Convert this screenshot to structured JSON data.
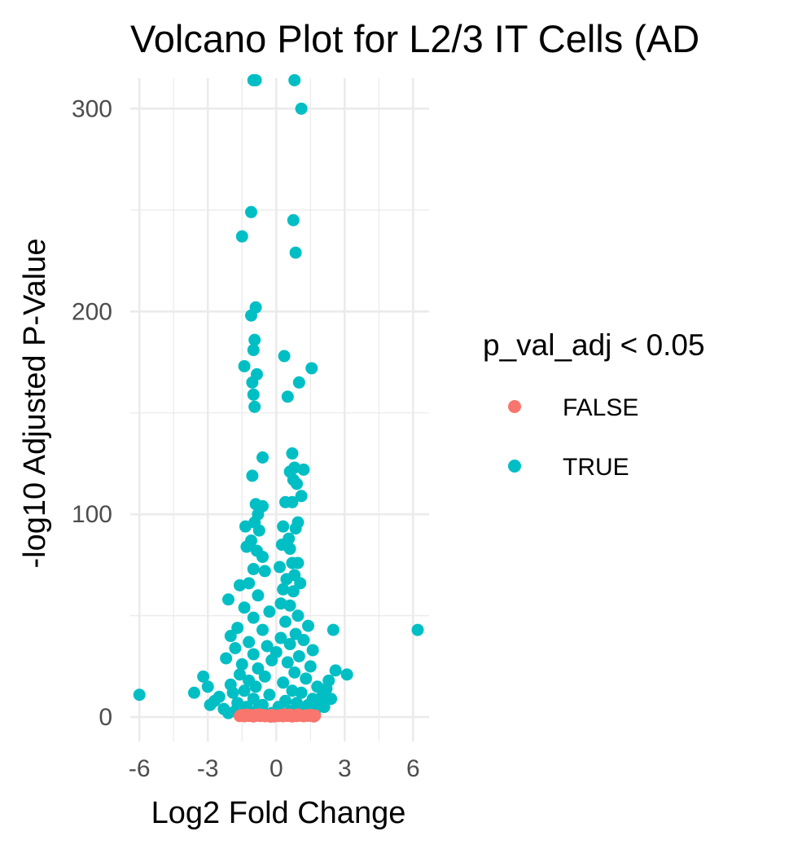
{
  "chart_data": {
    "type": "scatter",
    "title": "Volcano Plot for L2/3 IT Cells (AD",
    "xlabel": "Log2 Fold Change",
    "ylabel": "-log10 Adjusted P-Value",
    "xlim": [
      -6.4,
      6.7
    ],
    "ylim": [
      -12,
      315
    ],
    "x_ticks": [
      -6,
      -3,
      0,
      3,
      6
    ],
    "x_tick_labels": [
      "-6",
      "-3",
      "0",
      "3",
      "6"
    ],
    "y_ticks": [
      0,
      100,
      200,
      300
    ],
    "y_tick_labels": [
      "0",
      "100",
      "200",
      "300"
    ],
    "grid": true,
    "legend": {
      "title": "p_val_adj < 0.05",
      "position": "right",
      "entries": [
        {
          "label": "FALSE",
          "color": "#F8766D"
        },
        {
          "label": "TRUE",
          "color": "#00BFC4"
        }
      ]
    },
    "series": [
      {
        "name": "FALSE",
        "color": "#F8766D",
        "points": [
          [
            -1.6,
            0.5
          ],
          [
            -1.5,
            1
          ],
          [
            -1.4,
            0.4
          ],
          [
            -1.3,
            1.2
          ],
          [
            -1.2,
            0.6
          ],
          [
            -1.1,
            0.9
          ],
          [
            -1.0,
            0.3
          ],
          [
            -0.9,
            1.1
          ],
          [
            -0.8,
            0.7
          ],
          [
            -0.7,
            0.5
          ],
          [
            -0.6,
            1.0
          ],
          [
            -0.5,
            0.4
          ],
          [
            -0.4,
            0.8
          ],
          [
            -0.3,
            0.6
          ],
          [
            -0.2,
            1.1
          ],
          [
            -0.1,
            0.3
          ],
          [
            0.0,
            0.7
          ],
          [
            0.1,
            0.5
          ],
          [
            0.2,
            1.0
          ],
          [
            0.3,
            0.4
          ],
          [
            0.4,
            0.9
          ],
          [
            0.5,
            0.6
          ],
          [
            0.6,
            1.2
          ],
          [
            0.7,
            0.3
          ],
          [
            0.8,
            0.8
          ],
          [
            0.9,
            0.5
          ],
          [
            1.0,
            1.0
          ],
          [
            1.1,
            0.7
          ],
          [
            1.2,
            0.4
          ],
          [
            1.3,
            0.9
          ],
          [
            1.4,
            0.6
          ],
          [
            1.5,
            1.1
          ],
          [
            1.6,
            0.5
          ],
          [
            1.7,
            0.8
          ],
          [
            -1.55,
            0.9
          ],
          [
            1.65,
            0.3
          ],
          [
            -0.25,
            0.2
          ],
          [
            0.35,
            1.3
          ],
          [
            -0.75,
            1.3
          ],
          [
            0.95,
            1.3
          ]
        ]
      },
      {
        "name": "TRUE",
        "color": "#00BFC4",
        "points": [
          [
            -1.0,
            314
          ],
          [
            -0.9,
            314
          ],
          [
            0.8,
            314
          ],
          [
            1.1,
            300
          ],
          [
            -1.1,
            249
          ],
          [
            0.75,
            245
          ],
          [
            -1.5,
            237
          ],
          [
            0.85,
            229
          ],
          [
            -0.9,
            202
          ],
          [
            -1.1,
            198
          ],
          [
            -0.95,
            186
          ],
          [
            -1.0,
            181
          ],
          [
            0.35,
            178
          ],
          [
            -0.85,
            169
          ],
          [
            -1.4,
            173
          ],
          [
            1.55,
            172
          ],
          [
            -1.05,
            165
          ],
          [
            1.0,
            165
          ],
          [
            -1.0,
            159
          ],
          [
            -0.95,
            153
          ],
          [
            0.5,
            158
          ],
          [
            -0.6,
            128
          ],
          [
            0.7,
            130
          ],
          [
            0.8,
            123
          ],
          [
            1.2,
            122
          ],
          [
            0.6,
            121
          ],
          [
            0.75,
            117
          ],
          [
            -1.05,
            119
          ],
          [
            0.9,
            115
          ],
          [
            1.1,
            109
          ],
          [
            0.4,
            106
          ],
          [
            0.7,
            106
          ],
          [
            -0.9,
            105
          ],
          [
            -0.6,
            104
          ],
          [
            -0.8,
            100
          ],
          [
            -0.95,
            96
          ],
          [
            0.95,
            96
          ],
          [
            0.3,
            94
          ],
          [
            -1.35,
            94
          ],
          [
            0.85,
            93
          ],
          [
            -0.75,
            92
          ],
          [
            0.55,
            88
          ],
          [
            -1.1,
            87
          ],
          [
            0.25,
            85
          ],
          [
            0.6,
            83
          ],
          [
            -1.3,
            84
          ],
          [
            -0.85,
            82
          ],
          [
            -0.6,
            79
          ],
          [
            0.7,
            76
          ],
          [
            0.95,
            76
          ],
          [
            0.15,
            74
          ],
          [
            -1.0,
            73
          ],
          [
            -0.5,
            72
          ],
          [
            0.8,
            70
          ],
          [
            0.45,
            68
          ],
          [
            -1.6,
            65
          ],
          [
            -1.2,
            66
          ],
          [
            1.05,
            66
          ],
          [
            0.3,
            63
          ],
          [
            0.75,
            62
          ],
          [
            -2.1,
            58
          ],
          [
            -0.8,
            60
          ],
          [
            0.2,
            56
          ],
          [
            0.6,
            55
          ],
          [
            -1.4,
            54
          ],
          [
            -0.3,
            52
          ],
          [
            0.95,
            50
          ],
          [
            -1.0,
            49
          ],
          [
            0.4,
            47
          ],
          [
            1.4,
            45
          ],
          [
            2.5,
            43
          ],
          [
            6.2,
            43
          ],
          [
            -1.7,
            44
          ],
          [
            -0.6,
            43
          ],
          [
            0.85,
            41
          ],
          [
            -2.0,
            40
          ],
          [
            0.2,
            39
          ],
          [
            1.2,
            38
          ],
          [
            -1.2,
            37
          ],
          [
            0.6,
            36
          ],
          [
            -0.4,
            35
          ],
          [
            -1.8,
            34
          ],
          [
            1.6,
            33
          ],
          [
            0.0,
            32
          ],
          [
            -1.0,
            31
          ],
          [
            1.0,
            30
          ],
          [
            -2.2,
            29
          ],
          [
            -0.2,
            28
          ],
          [
            0.5,
            27
          ],
          [
            -1.5,
            26
          ],
          [
            1.5,
            25
          ],
          [
            -0.8,
            24
          ],
          [
            2.6,
            23
          ],
          [
            0.8,
            22
          ],
          [
            -1.6,
            21
          ],
          [
            3.1,
            21
          ],
          [
            -3.2,
            20
          ],
          [
            -0.5,
            20
          ],
          [
            1.3,
            19
          ],
          [
            2.3,
            18
          ],
          [
            -1.2,
            18
          ],
          [
            0.3,
            17
          ],
          [
            -2.0,
            16
          ],
          [
            -3.0,
            15
          ],
          [
            1.8,
            15
          ],
          [
            -0.9,
            15
          ],
          [
            2.2,
            14
          ],
          [
            -1.4,
            13
          ],
          [
            0.7,
            13
          ],
          [
            -3.6,
            12
          ],
          [
            -1.9,
            12
          ],
          [
            1.1,
            12
          ],
          [
            -6.0,
            11
          ],
          [
            -0.3,
            11
          ],
          [
            2.0,
            10
          ],
          [
            -2.5,
            10
          ],
          [
            1.6,
            9
          ],
          [
            2.4,
            9
          ],
          [
            -1.0,
            9
          ],
          [
            0.4,
            8
          ],
          [
            -2.7,
            8
          ],
          [
            1.9,
            7
          ],
          [
            -1.7,
            7
          ],
          [
            0.9,
            7
          ],
          [
            -2.9,
            6
          ],
          [
            -0.6,
            6
          ],
          [
            1.4,
            6
          ],
          [
            -1.3,
            5
          ],
          [
            0.1,
            5
          ],
          [
            2.1,
            5
          ],
          [
            -2.3,
            4
          ],
          [
            1.2,
            4
          ],
          [
            -0.8,
            4
          ],
          [
            -1.8,
            3
          ],
          [
            0.6,
            3
          ],
          [
            1.7,
            3
          ],
          [
            -2.1,
            2
          ],
          [
            -0.2,
            2
          ],
          [
            1.0,
            2
          ],
          [
            -1.5,
            2
          ]
        ]
      }
    ]
  }
}
